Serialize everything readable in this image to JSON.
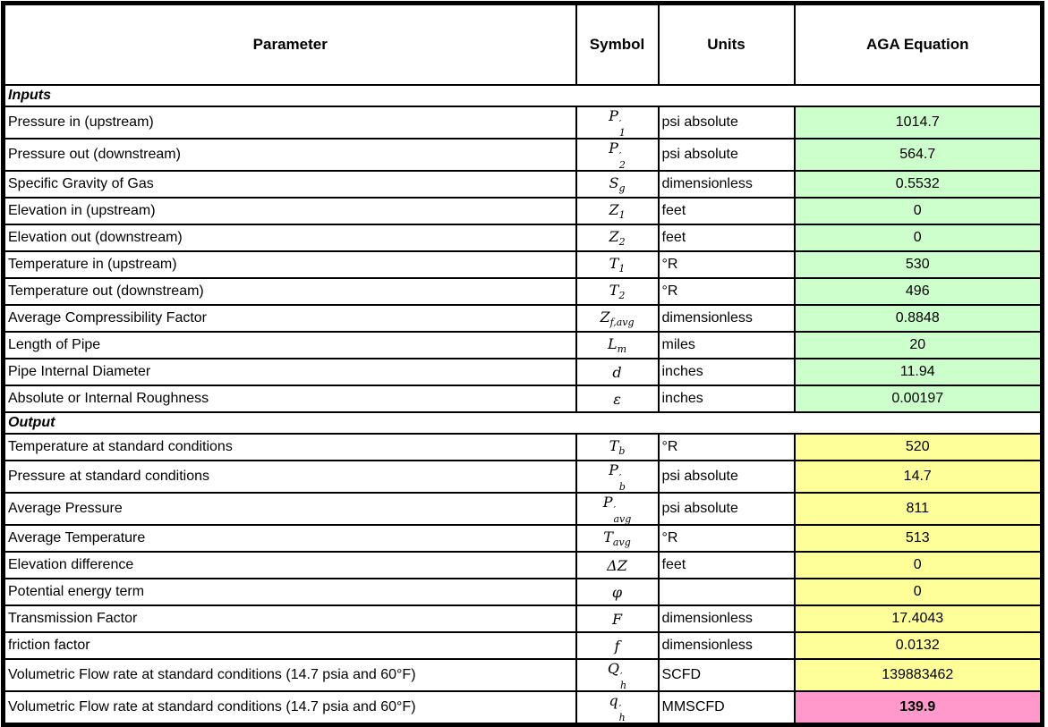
{
  "table": {
    "columns": [
      "Parameter",
      "Symbol",
      "Units",
      "AGA Equation"
    ],
    "fill_colors": {
      "input": "#CCFFCC",
      "output": "#FFFF99",
      "result": "#FF99CC"
    },
    "border_color": "#000000",
    "sections": [
      {
        "label": "Inputs",
        "rows": [
          {
            "param": "Pressure in (upstream)",
            "symbol": {
              "base": "P",
              "prime": true,
              "sub": "1"
            },
            "units": "psi absolute",
            "value": "1014.7",
            "fill": "input"
          },
          {
            "param": "Pressure out (downstream)",
            "symbol": {
              "base": "P",
              "prime": true,
              "sub": "2"
            },
            "units": "psi absolute",
            "value": "564.7",
            "fill": "input"
          },
          {
            "param": "Specific Gravity of Gas",
            "symbol": {
              "base": "S",
              "sub": "g"
            },
            "units": "dimensionless",
            "value": "0.5532",
            "fill": "input"
          },
          {
            "param": "Elevation in (upstream)",
            "symbol": {
              "base": "Z",
              "sub": "1"
            },
            "units": "feet",
            "value": "0",
            "fill": "input"
          },
          {
            "param": "Elevation out (downstream)",
            "symbol": {
              "base": "Z",
              "sub": "2"
            },
            "units": "feet",
            "value": "0",
            "fill": "input"
          },
          {
            "param": "Temperature in (upstream)",
            "symbol": {
              "base": "T",
              "sub": "1"
            },
            "units": "°R",
            "value": "530",
            "fill": "input"
          },
          {
            "param": "Temperature out (downstream)",
            "symbol": {
              "base": "T",
              "sub": "2"
            },
            "units": "°R",
            "value": "496",
            "fill": "input"
          },
          {
            "param": "Average Compressibility Factor",
            "symbol": {
              "base": "Z",
              "sub": "f,avg"
            },
            "units": "dimensionless",
            "value": "0.8848",
            "fill": "input"
          },
          {
            "param": "Length of Pipe",
            "symbol": {
              "base": "L",
              "sub": "m"
            },
            "units": "miles",
            "value": "20",
            "fill": "input"
          },
          {
            "param": "Pipe Internal Diameter",
            "symbol": {
              "base": "d"
            },
            "units": "inches",
            "value": "11.94",
            "fill": "input"
          },
          {
            "param": "Absolute or Internal Roughness",
            "symbol": {
              "base": "ε"
            },
            "units": "inches",
            "value": "0.00197",
            "fill": "input"
          }
        ]
      },
      {
        "label": "Output",
        "rows": [
          {
            "param": "Temperature at standard conditions",
            "symbol": {
              "base": "T",
              "sub": "b"
            },
            "units": "°R",
            "value": "520",
            "fill": "output"
          },
          {
            "param": "Pressure at standard conditions",
            "symbol": {
              "base": "P",
              "prime": true,
              "sub": "b"
            },
            "units": "psi absolute",
            "value": "14.7",
            "fill": "output"
          },
          {
            "param": "Average Pressure",
            "symbol": {
              "base": "P",
              "prime": true,
              "sub": "avg"
            },
            "units": "psi absolute",
            "value": "811",
            "fill": "output"
          },
          {
            "param": "Average Temperature",
            "symbol": {
              "base": "T",
              "sub": "avg"
            },
            "units": "°R",
            "value": "513",
            "fill": "output"
          },
          {
            "param": "Elevation difference",
            "symbol": {
              "base": "ΔZ"
            },
            "units": "feet",
            "value": "0",
            "fill": "output"
          },
          {
            "param": "Potential energy term",
            "symbol": {
              "base": "φ"
            },
            "units": "",
            "value": "0",
            "fill": "output"
          },
          {
            "param": "Transmission Factor",
            "symbol": {
              "base": "F"
            },
            "units": "dimensionless",
            "value": "17.4043",
            "fill": "output"
          },
          {
            "param": "friction factor",
            "symbol": {
              "base": "f"
            },
            "units": "dimensionless",
            "value": "0.0132",
            "fill": "output"
          },
          {
            "param": "Volumetric Flow rate at standard conditions (14.7 psia and 60°F)",
            "symbol": {
              "base": "Q",
              "prime": true,
              "sub": "h"
            },
            "units": "SCFD",
            "value": "139883462",
            "fill": "output"
          },
          {
            "param": "Volumetric Flow rate at standard conditions (14.7 psia and 60°F)",
            "symbol": {
              "base": "q",
              "prime": true,
              "sub": "h"
            },
            "units": "MMSCFD",
            "value": "139.9",
            "fill": "result"
          }
        ]
      }
    ]
  }
}
